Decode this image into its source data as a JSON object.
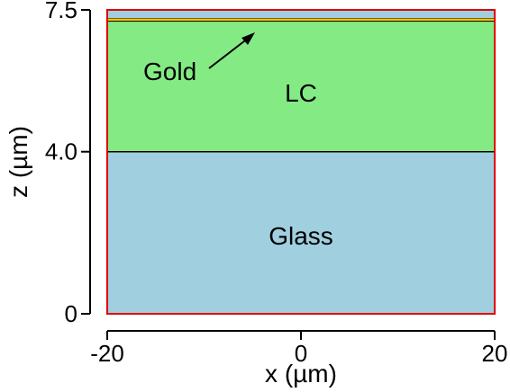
{
  "diagram": {
    "x_axis": {
      "label": "x (µm)",
      "range": [
        -20,
        20
      ],
      "ticks": [
        {
          "value": -20,
          "label": "-20"
        },
        {
          "value": 0,
          "label": "0"
        },
        {
          "value": 20,
          "label": "20"
        }
      ]
    },
    "y_axis": {
      "label": "z (µm)",
      "range": [
        0,
        7.5
      ],
      "ticks": [
        {
          "value": 0,
          "label": "0"
        },
        {
          "value": 4.0,
          "label": "4.0"
        },
        {
          "value": 7.5,
          "label": "7.5"
        }
      ]
    },
    "layers": [
      {
        "name": "glass-substrate",
        "label": "Glass",
        "z_min": 0,
        "z_max": 4.0,
        "color": "#a0cfe0"
      },
      {
        "name": "liquid-crystal",
        "label": "LC",
        "z_min": 4.0,
        "z_max": 7.22,
        "color": "#84eb84"
      },
      {
        "name": "gold-film",
        "label": "Gold",
        "z_min": 7.22,
        "z_max": 7.3,
        "color": "#f5c400"
      },
      {
        "name": "top-glass",
        "label": "",
        "z_min": 7.3,
        "z_max": 7.5,
        "color": "#a0cfe0"
      }
    ],
    "colors": {
      "frame": "#e00000",
      "interface_line": "#000000",
      "gold_outline": "#000000"
    }
  }
}
